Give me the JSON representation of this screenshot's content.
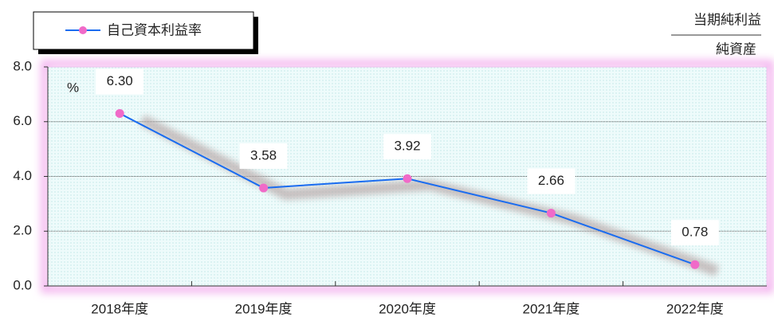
{
  "chart_data": {
    "type": "line",
    "legend": "自己資本利益率",
    "formula": {
      "numerator": "当期純利益",
      "denominator": "純資産"
    },
    "unit": "%",
    "categories": [
      "2018年度",
      "2019年度",
      "2020年度",
      "2021年度",
      "2022年度"
    ],
    "series": [
      {
        "name": "自己資本利益率",
        "color": "#1a6cf0",
        "marker_color": "#f06ac8",
        "values": [
          6.3,
          3.58,
          3.92,
          2.66,
          0.78
        ],
        "value_labels": [
          "6.30",
          "3.58",
          "3.92",
          "2.66",
          "0.78"
        ]
      }
    ],
    "ylim": [
      0,
      8
    ],
    "yticks": [
      {
        "value": 0,
        "label": "0.0"
      },
      {
        "value": 2,
        "label": "2.0"
      },
      {
        "value": 4,
        "label": "4.0"
      },
      {
        "value": 6,
        "label": "6.0"
      },
      {
        "value": 8,
        "label": "8.0"
      }
    ],
    "grid": true
  }
}
